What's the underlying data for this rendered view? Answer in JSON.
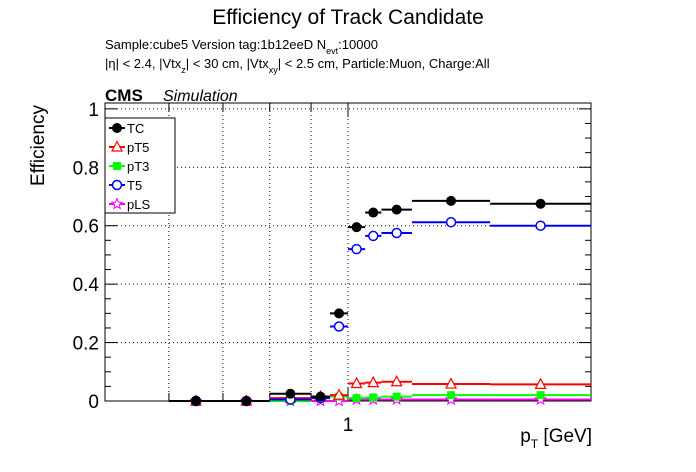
{
  "chart_data": {
    "type": "scatter",
    "title": "Efficiency of Track Candidate",
    "subtitle1": "Sample:cube5   Version tag:1b12eeD  N",
    "subtitle1_sub": "evt",
    "subtitle1_tail": ":10000",
    "subtitle2_parts": [
      "|η| < 2.4, |Vtx",
      "z",
      "| < 30 cm, |Vtx",
      "xy",
      "| < 2.5 cm, Particle:Muon, Charge:All"
    ],
    "cms_label": "CMS",
    "sim_label": "Simulation",
    "ylabel": "Efficiency",
    "xlabel_main": "p",
    "xlabel_sub": "T",
    "xlabel_unit": " [GeV]",
    "x_scale": "log",
    "xlim": [
      0.5,
      2.0
    ],
    "ylim": [
      0,
      1.02
    ],
    "grid": true,
    "legend_position": "top-left",
    "x_tick_labels": [
      {
        "value": 1,
        "label": "1"
      }
    ],
    "y_tick_labels": [
      {
        "value": 0,
        "label": "0"
      },
      {
        "value": 0.2,
        "label": "0.2"
      },
      {
        "value": 0.4,
        "label": "0.4"
      },
      {
        "value": 0.6,
        "label": "0.6"
      },
      {
        "value": 0.8,
        "label": "0.8"
      },
      {
        "value": 1,
        "label": "1"
      }
    ],
    "bins": [
      [
        0.6,
        0.7
      ],
      [
        0.7,
        0.8
      ],
      [
        0.8,
        0.9
      ],
      [
        0.9,
        0.95
      ],
      [
        0.95,
        1.0
      ],
      [
        1.0,
        1.05
      ],
      [
        1.05,
        1.1
      ],
      [
        1.1,
        1.2
      ],
      [
        1.2,
        1.5
      ],
      [
        1.5,
        2.0
      ]
    ],
    "series": [
      {
        "name": "TC",
        "color": "#000000",
        "marker": "filled-circle",
        "values": [
          0.0,
          0.0,
          0.025,
          0.015,
          0.3,
          0.595,
          0.645,
          0.655,
          0.685,
          0.675
        ]
      },
      {
        "name": "pT5",
        "color": "#ff0000",
        "marker": "open-triangle",
        "values": [
          0.0,
          0.0,
          0.01,
          0.015,
          0.02,
          0.06,
          0.063,
          0.066,
          0.058,
          0.057
        ]
      },
      {
        "name": "pT3",
        "color": "#00ff00",
        "marker": "filled-square",
        "values": [
          0.0,
          0.0,
          0.0,
          0.01,
          0.015,
          0.01,
          0.012,
          0.015,
          0.02,
          0.02
        ]
      },
      {
        "name": "T5",
        "color": "#0000ff",
        "marker": "open-circle",
        "values": [
          0.0,
          0.0,
          0.005,
          0.01,
          0.255,
          0.52,
          0.565,
          0.575,
          0.612,
          0.6
        ]
      },
      {
        "name": "pLS",
        "color": "#ff00ff",
        "marker": "open-star",
        "values": [
          0.0,
          0.0,
          0.0,
          0.0,
          0.0,
          0.005,
          0.005,
          0.005,
          0.005,
          0.005
        ]
      }
    ]
  }
}
